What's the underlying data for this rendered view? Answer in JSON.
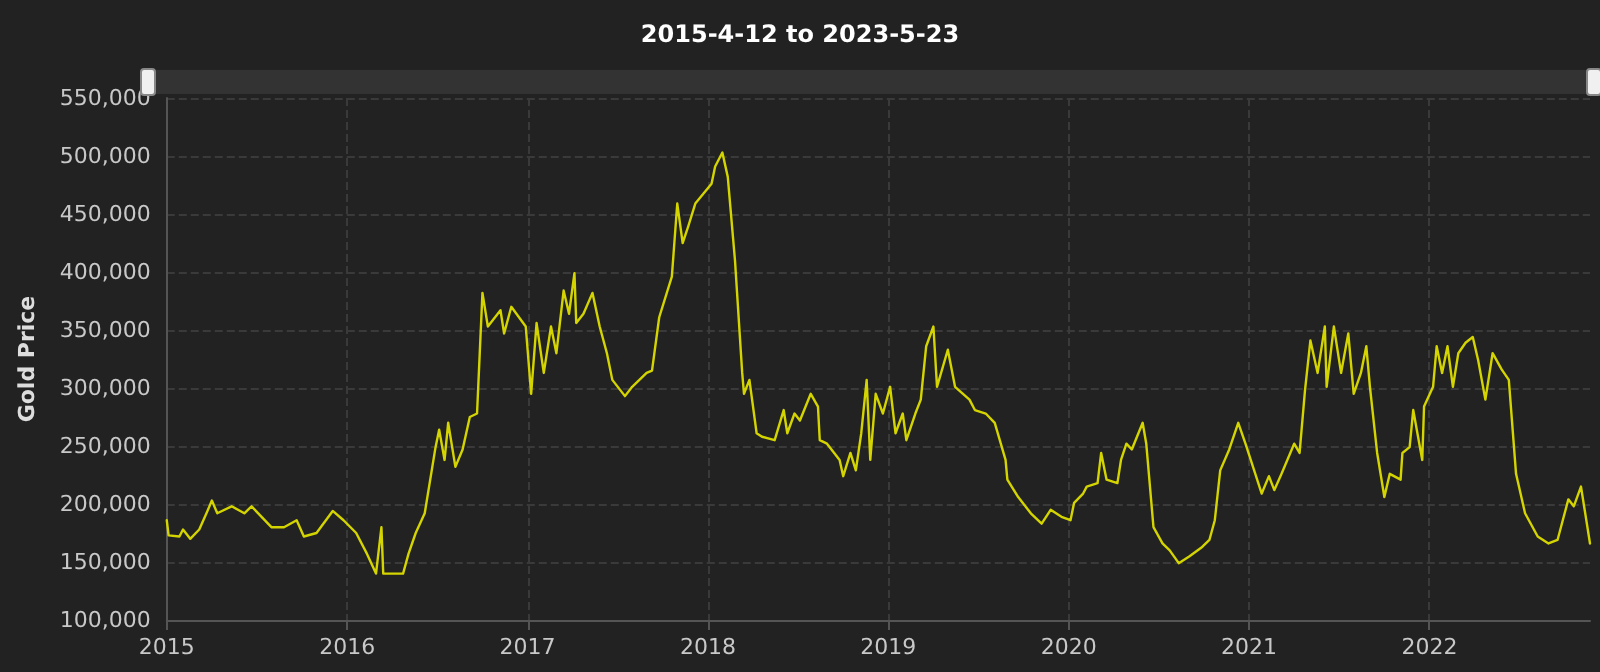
{
  "chart_data": {
    "type": "line",
    "title": "2015-4-12 to 2023-5-23",
    "ylabel": "Gold Price",
    "xlim": [
      2015,
      2022.89
    ],
    "xticks": [
      2015,
      2016,
      2017,
      2018,
      2019,
      2020,
      2021,
      2022
    ],
    "ylim": [
      100000,
      550000
    ],
    "yticks": [
      {
        "value": 100000,
        "label": "100,000"
      },
      {
        "value": 150000,
        "label": "150,000"
      },
      {
        "value": 200000,
        "label": "200,000"
      },
      {
        "value": 250000,
        "label": "250,000"
      },
      {
        "value": 300000,
        "label": "300,000"
      },
      {
        "value": 350000,
        "label": "350,000"
      },
      {
        "value": 400000,
        "label": "400,000"
      },
      {
        "value": 450000,
        "label": "450,000"
      },
      {
        "value": 500000,
        "label": "500,000"
      },
      {
        "value": 550000,
        "label": "550,000"
      }
    ],
    "grid": true,
    "marker": "none",
    "line_style": "solid",
    "series": [
      {
        "color": "#d4d400",
        "x": [
          2015.0,
          2015.01,
          2015.07,
          2015.09,
          2015.13,
          2015.18,
          2015.22,
          2015.25,
          2015.28,
          2015.36,
          2015.43,
          2015.47,
          2015.58,
          2015.65,
          2015.72,
          2015.76,
          2015.83,
          2015.92,
          2015.98,
          2016.05,
          2016.11,
          2016.16,
          2016.19,
          2016.2,
          2016.31,
          2016.34,
          2016.38,
          2016.43,
          2016.49,
          2016.51,
          2016.54,
          2016.56,
          2016.6,
          2016.64,
          2016.68,
          2016.72,
          2016.75,
          2016.78,
          2016.85,
          2016.87,
          2016.91,
          2016.99,
          2017.02,
          2017.05,
          2017.09,
          2017.13,
          2017.16,
          2017.2,
          2017.23,
          2017.26,
          2017.27,
          2017.31,
          2017.36,
          2017.4,
          2017.44,
          2017.47,
          2017.54,
          2017.58,
          2017.66,
          2017.69,
          2017.73,
          2017.8,
          2017.83,
          2017.86,
          2017.89,
          2017.93,
          2018.02,
          2018.04,
          2018.08,
          2018.11,
          2018.15,
          2018.19,
          2018.2,
          2018.23,
          2018.27,
          2018.3,
          2018.37,
          2018.42,
          2018.44,
          2018.48,
          2018.51,
          2018.57,
          2018.61,
          2018.62,
          2018.66,
          2018.7,
          2018.73,
          2018.75,
          2018.79,
          2018.82,
          2018.85,
          2018.88,
          2018.9,
          2018.93,
          2018.97,
          2019.01,
          2019.04,
          2019.08,
          2019.1,
          2019.15,
          2019.18,
          2019.21,
          2019.25,
          2019.27,
          2019.33,
          2019.37,
          2019.45,
          2019.48,
          2019.54,
          2019.59,
          2019.65,
          2019.66,
          2019.72,
          2019.79,
          2019.85,
          2019.9,
          2019.96,
          2020.01,
          2020.03,
          2020.08,
          2020.1,
          2020.16,
          2020.18,
          2020.21,
          2020.27,
          2020.29,
          2020.32,
          2020.35,
          2020.41,
          2020.43,
          2020.47,
          2020.52,
          2020.56,
          2020.61,
          2020.67,
          2020.74,
          2020.78,
          2020.81,
          2020.84,
          2020.89,
          2020.94,
          2020.98,
          2021.07,
          2021.11,
          2021.14,
          2021.18,
          2021.25,
          2021.28,
          2021.31,
          2021.34,
          2021.38,
          2021.42,
          2021.43,
          2021.47,
          2021.51,
          2021.55,
          2021.58,
          2021.62,
          2021.65,
          2021.67,
          2021.71,
          2021.75,
          2021.78,
          2021.84,
          2021.85,
          2021.89,
          2021.91,
          2021.96,
          2021.97,
          2022.02,
          2022.04,
          2022.07,
          2022.1,
          2022.13,
          2022.16,
          2022.2,
          2022.24,
          2022.27,
          2022.31,
          2022.35,
          2022.4,
          2022.44,
          2022.48,
          2022.53,
          2022.6,
          2022.66,
          2022.71,
          2022.77,
          2022.8,
          2022.84,
          2022.89
        ],
        "values": [
          186000,
          173000,
          172000,
          178000,
          170000,
          178000,
          192000,
          203000,
          192000,
          198000,
          192000,
          198000,
          180000,
          180000,
          186000,
          172000,
          175000,
          194000,
          186000,
          175000,
          157000,
          140000,
          180000,
          140000,
          140000,
          157000,
          175000,
          192000,
          249000,
          264000,
          238000,
          270000,
          232000,
          247000,
          275000,
          278000,
          382000,
          353000,
          367000,
          347000,
          370000,
          353000,
          295000,
          356000,
          313000,
          353000,
          330000,
          384000,
          364000,
          399000,
          356000,
          364000,
          382000,
          353000,
          330000,
          307000,
          293000,
          301000,
          313000,
          315000,
          361000,
          396000,
          459000,
          425000,
          439000,
          459000,
          476000,
          491000,
          503000,
          482000,
          410000,
          313000,
          295000,
          307000,
          261000,
          258000,
          255000,
          281000,
          261000,
          278000,
          272000,
          295000,
          284000,
          255000,
          252000,
          244000,
          238000,
          224000,
          244000,
          229000,
          261000,
          307000,
          238000,
          295000,
          278000,
          301000,
          261000,
          278000,
          255000,
          278000,
          290000,
          336000,
          353000,
          301000,
          333000,
          301000,
          290000,
          281000,
          278000,
          270000,
          238000,
          221000,
          206000,
          192000,
          183000,
          195000,
          189000,
          186000,
          201000,
          209000,
          215000,
          218000,
          244000,
          221000,
          218000,
          238000,
          252000,
          247000,
          270000,
          252000,
          180000,
          166000,
          160000,
          149000,
          155000,
          163000,
          169000,
          186000,
          229000,
          247000,
          270000,
          252000,
          209000,
          224000,
          212000,
          226000,
          252000,
          244000,
          298000,
          341000,
          313000,
          353000,
          301000,
          353000,
          313000,
          347000,
          295000,
          313000,
          336000,
          301000,
          244000,
          206000,
          226000,
          221000,
          244000,
          249000,
          281000,
          238000,
          284000,
          301000,
          336000,
          313000,
          336000,
          301000,
          330000,
          339000,
          344000,
          324000,
          290000,
          330000,
          316000,
          307000,
          226000,
          192000,
          172000,
          166000,
          169000,
          204000,
          198000,
          215000,
          166000
        ]
      }
    ]
  }
}
